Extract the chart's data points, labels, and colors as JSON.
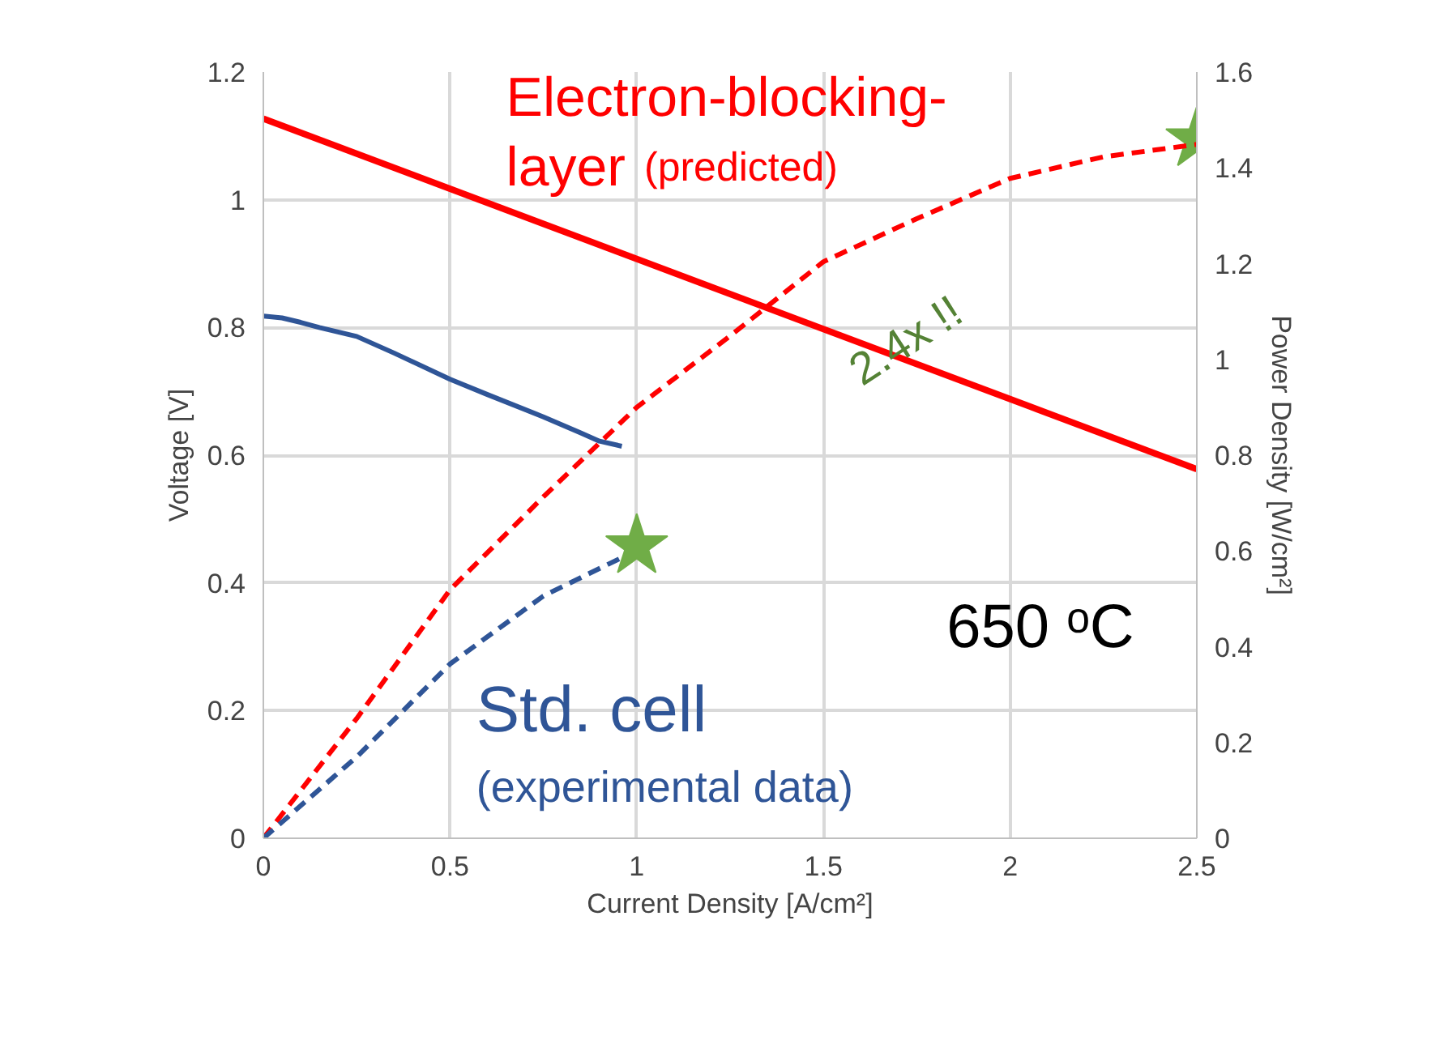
{
  "chart_data": {
    "type": "line",
    "xlabel": "Current Density [A/cm²]",
    "ylabel": "Voltage [V]",
    "y2label": "Power Density [W/cm²]",
    "xlim": [
      0,
      2.5
    ],
    "xticks": [
      0,
      0.5,
      1,
      1.5,
      2,
      2.5
    ],
    "ylim": [
      0,
      1.2
    ],
    "yticks": [
      0,
      0.2,
      0.4,
      0.6,
      0.8,
      1,
      1.2
    ],
    "y2lim": [
      0,
      1.6
    ],
    "y2ticks": [
      0,
      0.2,
      0.4,
      0.6,
      0.8,
      1,
      1.2,
      1.4,
      1.6
    ],
    "grid": true,
    "series": [
      {
        "color": "#ff0000",
        "line_style": "solid",
        "x": [
          0,
          2.5
        ],
        "values": [
          1.127,
          0.578
        ]
      },
      {
        "color": "#2f5597",
        "line_style": "solid",
        "x": [
          0,
          0.05,
          0.1,
          0.15,
          0.25,
          0.35,
          0.5,
          0.6,
          0.75,
          0.85,
          0.9,
          0.96
        ],
        "values": [
          0.818,
          0.815,
          0.808,
          0.8,
          0.786,
          0.76,
          0.719,
          0.695,
          0.66,
          0.635,
          0.622,
          0.614
        ]
      },
      {
        "color": "#ff0000",
        "line_style": "dashed",
        "axis": "y2",
        "x": [
          0,
          0.25,
          0.5,
          0.75,
          1,
          1.25,
          1.5,
          1.75,
          2,
          2.25,
          2.5
        ],
        "values": [
          0,
          0.25,
          0.519,
          0.713,
          0.9,
          1.049,
          1.204,
          1.294,
          1.378,
          1.423,
          1.449
        ]
      },
      {
        "color": "#2f5597",
        "line_style": "dashed",
        "axis": "y2",
        "x": [
          0,
          0.25,
          0.5,
          0.75,
          0.97
        ],
        "values": [
          0,
          0.17,
          0.364,
          0.506,
          0.59
        ]
      },
      {
        "type": "scatter",
        "marker": "star",
        "color": "#70ad47",
        "axis": "y2",
        "x": [
          1,
          2.5
        ],
        "values": [
          0.61,
          1.46
        ]
      }
    ],
    "annotations": [
      "Electron-blocking-",
      "layer",
      "(predicted)",
      "Std. cell",
      "(experimental data)",
      "650 ᵒC",
      "2.4x !!"
    ]
  }
}
